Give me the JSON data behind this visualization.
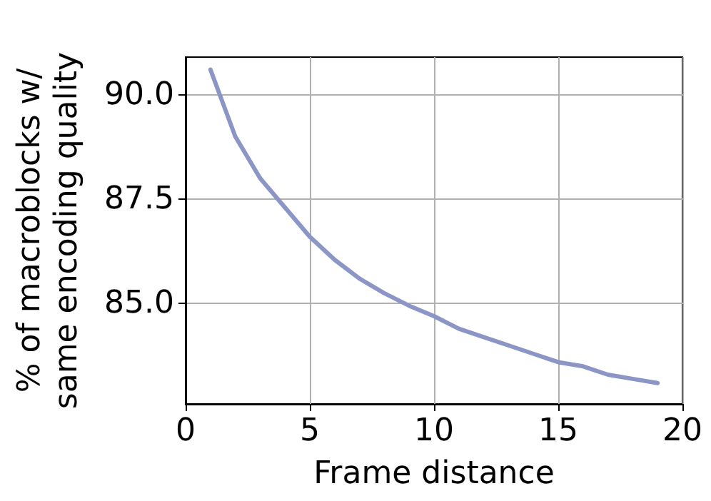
{
  "chart_data": {
    "type": "line",
    "xlabel": "Frame distance",
    "ylabel": "% of macroblocks w/\nsame encoding quality",
    "x": [
      1,
      2,
      3,
      4,
      5,
      6,
      7,
      8,
      9,
      10,
      11,
      12,
      13,
      14,
      15,
      16,
      17,
      18,
      19
    ],
    "series": [
      {
        "color": "#8c96c6",
        "values": [
          90.6,
          89.0,
          88.0,
          87.3,
          86.6,
          86.05,
          85.6,
          85.25,
          84.95,
          84.7,
          84.4,
          84.2,
          84.0,
          83.8,
          83.6,
          83.5,
          83.3,
          83.2,
          83.1
        ]
      }
    ],
    "xlim": [
      0,
      20
    ],
    "xticks": [
      0,
      5,
      10,
      15,
      20
    ],
    "ylim": [
      82.6,
      90.9
    ],
    "yticks": [
      {
        "value": 85,
        "label": "85.0"
      },
      {
        "value": 87.5,
        "label": "87.5"
      },
      {
        "value": 90,
        "label": "90.0"
      }
    ],
    "grid": true,
    "marker": "none",
    "line_style": "solid"
  }
}
